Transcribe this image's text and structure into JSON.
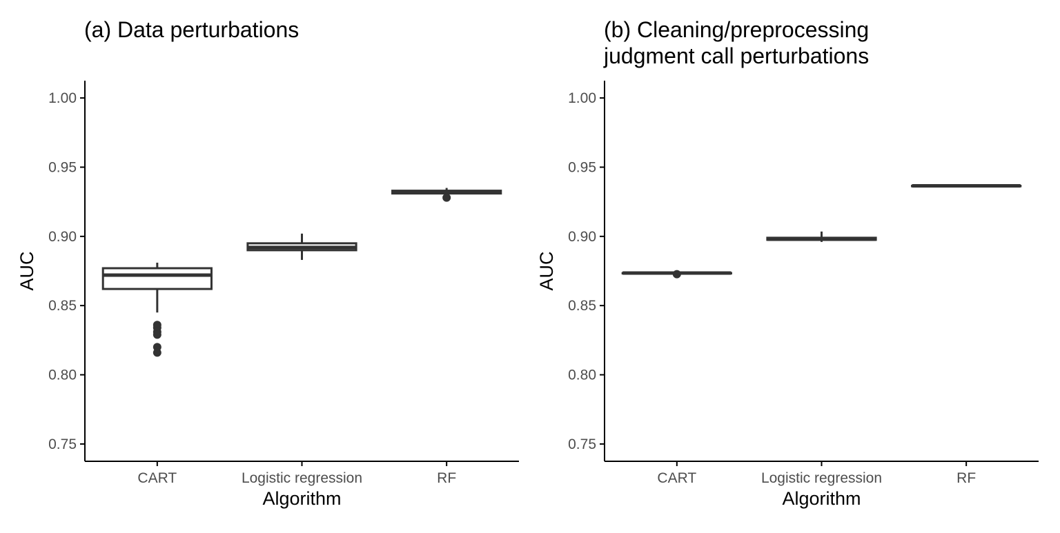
{
  "chart_data": [
    {
      "type": "boxplot",
      "title_lines": [
        "(a) Data perturbations"
      ],
      "xlabel": "Algorithm",
      "ylabel": "AUC",
      "categories": [
        "CART",
        "Logistic regression",
        "RF"
      ],
      "ylim": [
        0.7375,
        1.0125
      ],
      "yticks": [
        "0.75",
        "0.80",
        "0.85",
        "0.90",
        "0.95",
        "1.00"
      ],
      "grid": false,
      "legend": "none",
      "boxes": [
        {
          "category": "CART",
          "whisker_low": 0.845,
          "q1": 0.862,
          "median": 0.872,
          "q3": 0.877,
          "whisker_high": 0.881,
          "outliers": [
            0.836,
            0.834,
            0.831,
            0.829,
            0.82,
            0.816
          ]
        },
        {
          "category": "Logistic regression",
          "whisker_low": 0.883,
          "q1": 0.89,
          "median": 0.892,
          "q3": 0.895,
          "whisker_high": 0.902,
          "outliers": []
        },
        {
          "category": "RF",
          "whisker_low": 0.931,
          "q1": 0.931,
          "median": 0.932,
          "q3": 0.933,
          "whisker_high": 0.935,
          "outliers": [
            0.928
          ]
        }
      ]
    },
    {
      "type": "boxplot",
      "title_lines": [
        "(b) Cleaning/preprocessing",
        "judgment call perturbations"
      ],
      "xlabel": "Algorithm",
      "ylabel": "AUC",
      "categories": [
        "CART",
        "Logistic regression",
        "RF"
      ],
      "ylim": [
        0.7375,
        1.0125
      ],
      "yticks": [
        "0.75",
        "0.80",
        "0.85",
        "0.90",
        "0.95",
        "1.00"
      ],
      "grid": false,
      "legend": "none",
      "boxes": [
        {
          "category": "CART",
          "whisker_low": 0.8735,
          "q1": 0.8735,
          "median": 0.8735,
          "q3": 0.8735,
          "whisker_high": 0.8735,
          "outliers": [
            0.8727
          ]
        },
        {
          "category": "Logistic regression",
          "whisker_low": 0.896,
          "q1": 0.8975,
          "median": 0.898,
          "q3": 0.899,
          "whisker_high": 0.9035,
          "outliers": []
        },
        {
          "category": "RF",
          "whisker_low": 0.9365,
          "q1": 0.9365,
          "median": 0.9365,
          "q3": 0.9365,
          "whisker_high": 0.9365,
          "outliers": []
        }
      ]
    }
  ]
}
